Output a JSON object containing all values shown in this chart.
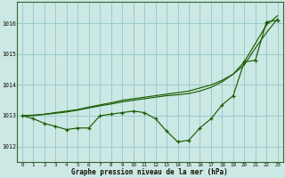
{
  "background_color": "#cce8e4",
  "grid_color": "#99cccc",
  "line_color": "#1a5c00",
  "xlabel": "Graphe pression niveau de la mer (hPa)",
  "xlim": [
    -0.5,
    23.5
  ],
  "ylim": [
    1011.5,
    1016.7
  ],
  "yticks": [
    1012,
    1013,
    1014,
    1015,
    1016
  ],
  "xticks": [
    0,
    1,
    2,
    3,
    4,
    5,
    6,
    7,
    8,
    9,
    10,
    11,
    12,
    13,
    14,
    15,
    16,
    17,
    18,
    19,
    20,
    21,
    22,
    23
  ],
  "series1_x": [
    0,
    1,
    2,
    3,
    4,
    5,
    6,
    7,
    8,
    9,
    10,
    11,
    12,
    13,
    14,
    15,
    16,
    17,
    18,
    19,
    20,
    21,
    22,
    23
  ],
  "series1_y": [
    1013.0,
    1012.9,
    1012.75,
    1012.65,
    1012.55,
    1012.6,
    1012.6,
    1013.0,
    1013.05,
    1013.1,
    1013.15,
    1013.1,
    1012.9,
    1012.5,
    1012.15,
    1012.2,
    1012.6,
    1012.9,
    1013.35,
    1013.65,
    1014.75,
    1014.8,
    1016.05,
    1016.1
  ],
  "series2_x": [
    0,
    1,
    2,
    3,
    4,
    5,
    6,
    7,
    8,
    9,
    10,
    11,
    12,
    13,
    14,
    15,
    16,
    17,
    18,
    19,
    20,
    21,
    22,
    23
  ],
  "series2_y": [
    1013.0,
    1013.0,
    1013.05,
    1013.1,
    1013.15,
    1013.2,
    1013.28,
    1013.35,
    1013.42,
    1013.5,
    1013.55,
    1013.6,
    1013.65,
    1013.7,
    1013.75,
    1013.8,
    1013.9,
    1014.0,
    1014.15,
    1014.35,
    1014.65,
    1015.2,
    1015.7,
    1016.15
  ],
  "series3_x": [
    0,
    1,
    2,
    3,
    4,
    5,
    6,
    7,
    8,
    9,
    10,
    11,
    12,
    13,
    14,
    15,
    16,
    17,
    18,
    19,
    20,
    21,
    22,
    23
  ],
  "series3_y": [
    1013.0,
    1013.02,
    1013.04,
    1013.08,
    1013.12,
    1013.18,
    1013.25,
    1013.32,
    1013.38,
    1013.45,
    1013.5,
    1013.55,
    1013.6,
    1013.65,
    1013.68,
    1013.72,
    1013.8,
    1013.92,
    1014.1,
    1014.35,
    1014.75,
    1015.35,
    1015.95,
    1016.25
  ]
}
